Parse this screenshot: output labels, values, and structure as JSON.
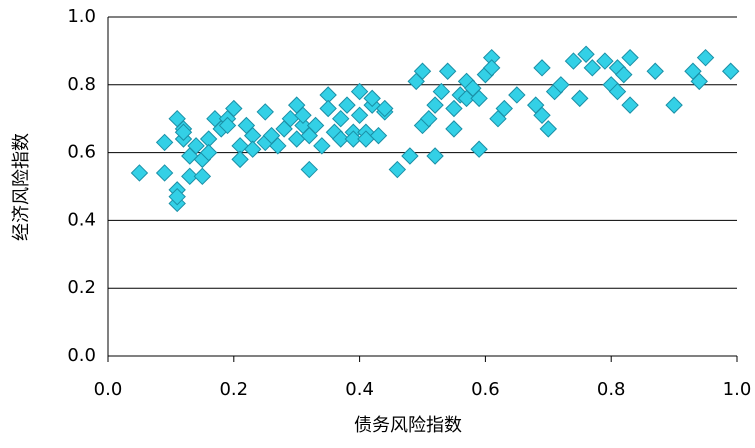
{
  "chart_data": {
    "type": "scatter",
    "x_label": "债务风险指数",
    "y_label": "经济风险指数",
    "color": "#33d0e6",
    "x": [
      0.05,
      0.09,
      0.09,
      0.11,
      0.11,
      0.11,
      0.11,
      0.12,
      0.12,
      0.12,
      0.13,
      0.13,
      0.14,
      0.15,
      0.15,
      0.16,
      0.16,
      0.17,
      0.18,
      0.19,
      0.19,
      0.2,
      0.21,
      0.21,
      0.22,
      0.23,
      0.23,
      0.25,
      0.25,
      0.26,
      0.27,
      0.28,
      0.29,
      0.3,
      0.3,
      0.31,
      0.31,
      0.32,
      0.32,
      0.33,
      0.34,
      0.35,
      0.35,
      0.36,
      0.37,
      0.37,
      0.38,
      0.39,
      0.39,
      0.4,
      0.4,
      0.41,
      0.41,
      0.42,
      0.42,
      0.43,
      0.44,
      0.44,
      0.46,
      0.48,
      0.49,
      0.5,
      0.5,
      0.51,
      0.52,
      0.52,
      0.53,
      0.54,
      0.55,
      0.55,
      0.56,
      0.57,
      0.57,
      0.58,
      0.59,
      0.59,
      0.6,
      0.61,
      0.61,
      0.62,
      0.63,
      0.65,
      0.68,
      0.69,
      0.69,
      0.7,
      0.71,
      0.72,
      0.74,
      0.75,
      0.76,
      0.77,
      0.79,
      0.8,
      0.81,
      0.81,
      0.82,
      0.83,
      0.83,
      0.87,
      0.9,
      0.93,
      0.94,
      0.95,
      0.99
    ],
    "values": [
      0.54,
      0.63,
      0.54,
      0.49,
      0.45,
      0.47,
      0.7,
      0.67,
      0.64,
      0.66,
      0.59,
      0.53,
      0.62,
      0.58,
      0.53,
      0.64,
      0.6,
      0.7,
      0.67,
      0.7,
      0.68,
      0.73,
      0.62,
      0.58,
      0.68,
      0.65,
      0.61,
      0.63,
      0.72,
      0.65,
      0.62,
      0.67,
      0.7,
      0.74,
      0.64,
      0.68,
      0.71,
      0.55,
      0.65,
      0.68,
      0.62,
      0.77,
      0.73,
      0.66,
      0.64,
      0.7,
      0.74,
      0.66,
      0.64,
      0.78,
      0.71,
      0.66,
      0.64,
      0.74,
      0.76,
      0.65,
      0.72,
      0.73,
      0.55,
      0.59,
      0.81,
      0.84,
      0.68,
      0.7,
      0.59,
      0.74,
      0.78,
      0.84,
      0.67,
      0.73,
      0.77,
      0.81,
      0.76,
      0.79,
      0.76,
      0.61,
      0.83,
      0.88,
      0.85,
      0.7,
      0.73,
      0.77,
      0.74,
      0.85,
      0.71,
      0.67,
      0.78,
      0.8,
      0.87,
      0.76,
      0.89,
      0.85,
      0.87,
      0.8,
      0.85,
      0.78,
      0.83,
      0.88,
      0.74,
      0.84,
      0.74,
      0.84,
      0.81,
      0.88,
      0.84
    ],
    "xlim": [
      0,
      1
    ],
    "ylim": [
      0,
      1
    ],
    "xticks": [
      {
        "value": 0,
        "label": "0.0"
      },
      {
        "value": 0.2,
        "label": "0.2"
      },
      {
        "value": 0.4,
        "label": "0.4"
      },
      {
        "value": 0.6,
        "label": "0.6"
      },
      {
        "value": 0.8,
        "label": "0.8"
      },
      {
        "value": 1,
        "label": "1.0"
      }
    ],
    "yticks": [
      {
        "value": 0,
        "label": "0.0"
      },
      {
        "value": 0.2,
        "label": "0.2"
      },
      {
        "value": 0.4,
        "label": "0.4"
      },
      {
        "value": 0.6,
        "label": "0.6"
      },
      {
        "value": 0.8,
        "label": "0.8"
      },
      {
        "value": 1,
        "label": "1.0"
      }
    ],
    "grid": true
  }
}
